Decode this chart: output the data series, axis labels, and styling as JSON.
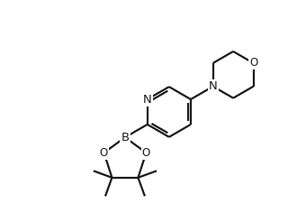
{
  "bg_color": "#ffffff",
  "line_color": "#1a1a1a",
  "line_width": 1.6,
  "font_size": 8.5,
  "figsize": [
    3.2,
    2.36
  ],
  "dpi": 100,
  "xlim": [
    0,
    8
  ],
  "ylim": [
    0,
    5.9
  ]
}
